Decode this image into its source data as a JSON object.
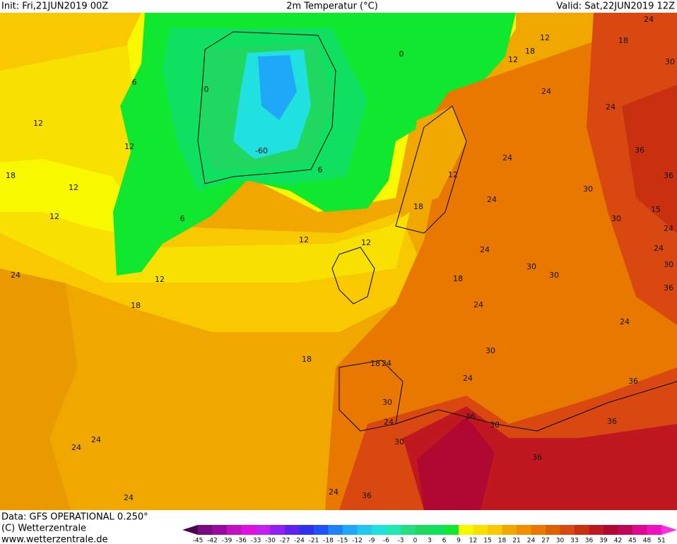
{
  "header": {
    "init": "Init: Fri,21JUN2019 00Z",
    "title": "2m Temperatur (°C)",
    "valid": "Valid: Sat,22JUN2019 12Z"
  },
  "footer": {
    "source": "Data: GFS OPERATIONAL 0.250°",
    "copyright": "(C) Wetterzentrale",
    "url": "www.wetterzentrale.de"
  },
  "colorbar": {
    "ticks": [
      -45,
      -42,
      -39,
      -36,
      -33,
      -30,
      -27,
      -24,
      -21,
      -18,
      -15,
      -12,
      -9,
      -6,
      -3,
      0,
      3,
      6,
      9,
      12,
      15,
      18,
      21,
      24,
      27,
      30,
      33,
      36,
      39,
      42,
      45,
      48,
      51
    ],
    "colors": [
      "#4b0050",
      "#7a0a84",
      "#9a0aa0",
      "#c010c0",
      "#e010e0",
      "#c020f0",
      "#9020f0",
      "#6020f0",
      "#3030f0",
      "#2050f8",
      "#2080f8",
      "#20a8f8",
      "#20c8f0",
      "#20e0e0",
      "#20e8b0",
      "#20e080",
      "#20d860",
      "#10e060",
      "#10e830",
      "#f8f800",
      "#f8e000",
      "#f8c800",
      "#f0a800",
      "#f09000",
      "#e87800",
      "#e06000",
      "#d84810",
      "#c83010",
      "#c01820",
      "#b00830",
      "#c00858",
      "#e00890",
      "#f010c0",
      "#f830e0"
    ]
  },
  "contour_labels": [
    12,
    12,
    12,
    12,
    18,
    6,
    12,
    12,
    24,
    18,
    18,
    24,
    24,
    24,
    24,
    36,
    30,
    24,
    30,
    36,
    30,
    36,
    36,
    36,
    24,
    30,
    24,
    18,
    24,
    24,
    24,
    24,
    24,
    30,
    36,
    36,
    30,
    30,
    24,
    18,
    18,
    12,
    12,
    12,
    18,
    30,
    30,
    30,
    36,
    24,
    24,
    15,
    0,
    -60,
    6,
    0,
    6,
    24,
    12,
    18,
    24
  ]
}
